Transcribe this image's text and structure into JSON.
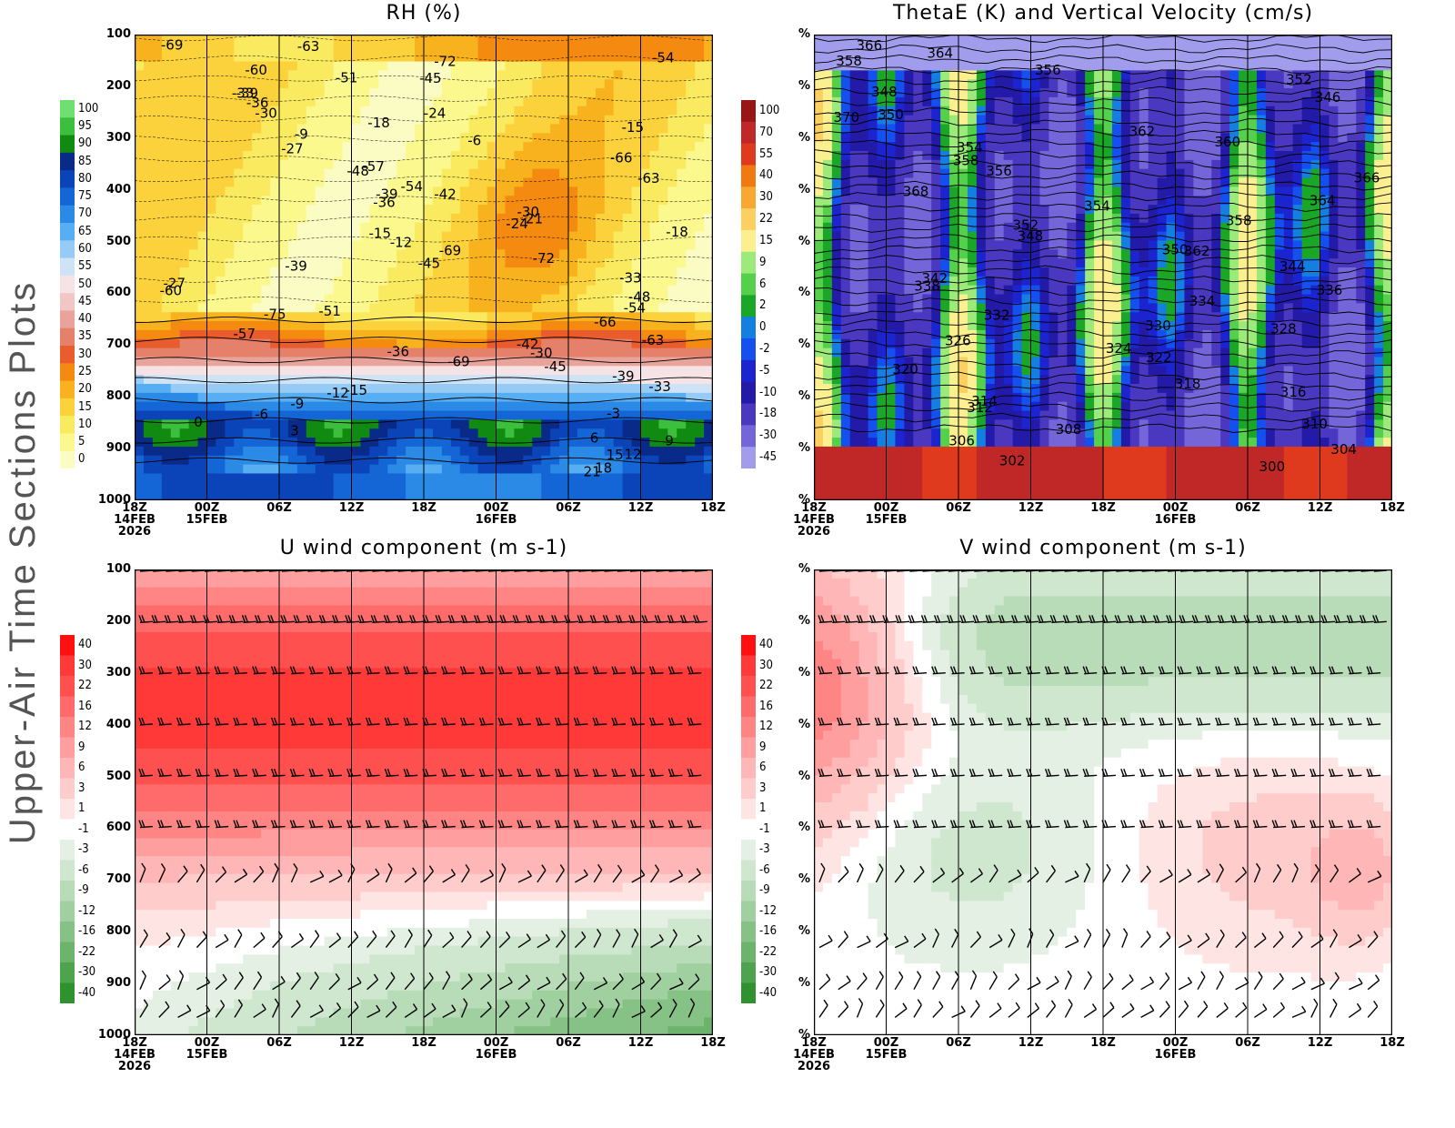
{
  "page_title": "Upper-Air Time Sections Plots",
  "chart_data": [
    {
      "id": "rh",
      "type": "heatmap",
      "title": "RH (%)",
      "y_ticks": [
        "100",
        "200",
        "300",
        "400",
        "500",
        "600",
        "700",
        "800",
        "900",
        "1000"
      ],
      "x_ticks": [
        "18Z",
        "00Z",
        "06Z",
        "12Z",
        "18Z",
        "00Z",
        "06Z",
        "12Z",
        "18Z"
      ],
      "x_date_labels": [
        {
          "index": 0,
          "lines": [
            "14FEB",
            "2026"
          ]
        },
        {
          "index": 1,
          "lines": [
            "15FEB"
          ]
        },
        {
          "index": 5,
          "lines": [
            "16FEB"
          ]
        }
      ],
      "colorbar": [
        "100",
        "95",
        "90",
        "85",
        "80",
        "75",
        "70",
        "65",
        "60",
        "55",
        "50",
        "45",
        "40",
        "35",
        "30",
        "25",
        "20",
        "15",
        "10",
        "5",
        "0"
      ],
      "colorbar_colors": [
        "#6fe06f",
        "#3cbf3c",
        "#108a10",
        "#0a2a8a",
        "#0b44b8",
        "#1466d6",
        "#2a8ae6",
        "#58aef2",
        "#96cbf5",
        "#cfe3f7",
        "#f6e3e6",
        "#f3c6c6",
        "#e8a39a",
        "#e5806a",
        "#e85c2e",
        "#f58a10",
        "#f7b21e",
        "#fbd23c",
        "#faea60",
        "#fbf88e",
        "#fbfbc4"
      ],
      "contour_labels": [
        "-69",
        "-63",
        "-54",
        "-72",
        "-60",
        "-51",
        "-45",
        "-39",
        "-33",
        "-36",
        "-30",
        "-24",
        "-18",
        "-15",
        "-9",
        "-6",
        "-27",
        "-66",
        "-57",
        "-48",
        "-63",
        "-54",
        "-42",
        "-39",
        "-36",
        "-30",
        "-21",
        "-24",
        "-18",
        "-15",
        "-12",
        "-69",
        "-72",
        "-45",
        "-39",
        "-33",
        "-27",
        "-60",
        "-48",
        "-54",
        "-51",
        "-75",
        "-66",
        "-57",
        "-63",
        "-42",
        "-36",
        "-30",
        "-69",
        "-45",
        "-39",
        "-33",
        "-15",
        "-12",
        "-9",
        "-6",
        "-3",
        "0",
        "3",
        "6",
        "9",
        "12",
        "15",
        "18",
        "21"
      ]
    },
    {
      "id": "thetae",
      "type": "heatmap",
      "title": "ThetaE (K) and Vertical Velocity (cm/s)",
      "y_ticks": [
        "%",
        "%",
        "%",
        "%",
        "%",
        "%",
        "%",
        "%",
        "%",
        "%"
      ],
      "x_ticks": [
        "18Z",
        "00Z",
        "06Z",
        "12Z",
        "18Z",
        "00Z",
        "06Z",
        "12Z",
        "18Z"
      ],
      "x_date_labels": [
        {
          "index": 0,
          "lines": [
            "14FEB",
            "2026"
          ]
        },
        {
          "index": 1,
          "lines": [
            "15FEB"
          ]
        },
        {
          "index": 5,
          "lines": [
            "16FEB"
          ]
        }
      ],
      "colorbar": [
        "100",
        "70",
        "55",
        "40",
        "30",
        "22",
        "15",
        "9",
        "6",
        "2",
        "0",
        "-2",
        "-5",
        "-10",
        "-18",
        "-30",
        "-45"
      ],
      "colorbar_colors": [
        "#9a1515",
        "#c02828",
        "#e03a1e",
        "#f07a10",
        "#f8a830",
        "#fbd060",
        "#fbef90",
        "#9bea7a",
        "#55d04a",
        "#1aa626",
        "#147fe0",
        "#1450f0",
        "#1c24d0",
        "#241aa8",
        "#4a38c0",
        "#7466d8",
        "#a19cec"
      ],
      "contour_labels": [
        "366",
        "364",
        "358",
        "356",
        "352",
        "348",
        "346",
        "350",
        "370",
        "362",
        "360",
        "354",
        "358",
        "356",
        "366",
        "368",
        "364",
        "354",
        "358",
        "352",
        "348",
        "350",
        "362",
        "344",
        "342",
        "338",
        "336",
        "334",
        "332",
        "330",
        "328",
        "326",
        "324",
        "322",
        "320",
        "318",
        "316",
        "314",
        "312",
        "310",
        "308",
        "306",
        "304",
        "302",
        "300"
      ]
    },
    {
      "id": "uwind",
      "type": "heatmap",
      "title": "U wind component (m s-1)",
      "y_ticks": [
        "100",
        "200",
        "300",
        "400",
        "500",
        "600",
        "700",
        "800",
        "900",
        "1000"
      ],
      "x_ticks": [
        "18Z",
        "00Z",
        "06Z",
        "12Z",
        "18Z",
        "00Z",
        "06Z",
        "12Z",
        "18Z"
      ],
      "x_date_labels": [
        {
          "index": 0,
          "lines": [
            "14FEB",
            "2026"
          ]
        },
        {
          "index": 1,
          "lines": [
            "15FEB"
          ]
        },
        {
          "index": 5,
          "lines": [
            "16FEB"
          ]
        }
      ],
      "colorbar": [
        "40",
        "30",
        "22",
        "16",
        "12",
        "9",
        "6",
        "3",
        "1",
        "-1",
        "-3",
        "-6",
        "-9",
        "-12",
        "-16",
        "-22",
        "-30",
        "-40"
      ],
      "colorbar_colors": [
        "#ff1010",
        "#ff3838",
        "#ff5050",
        "#ff6a6a",
        "#ff8484",
        "#ff9e9e",
        "#ffb6b6",
        "#ffcccc",
        "#ffe4e4",
        "#ffffff",
        "#e4f0e4",
        "#cfe6cf",
        "#b8dcb8",
        "#a0d0a0",
        "#86c286",
        "#6cb46c",
        "#4ea44e",
        "#2e922e"
      ],
      "contour_labels": []
    },
    {
      "id": "vwind",
      "type": "heatmap",
      "title": "V wind component (m s-1)",
      "y_ticks": [
        "%",
        "%",
        "%",
        "%",
        "%",
        "%",
        "%",
        "%",
        "%",
        "%"
      ],
      "x_ticks": [
        "18Z",
        "00Z",
        "06Z",
        "12Z",
        "18Z",
        "00Z",
        "06Z",
        "12Z",
        "18Z"
      ],
      "x_date_labels": [
        {
          "index": 0,
          "lines": [
            "14FEB",
            "2026"
          ]
        },
        {
          "index": 1,
          "lines": [
            "15FEB"
          ]
        },
        {
          "index": 5,
          "lines": [
            "16FEB"
          ]
        }
      ],
      "colorbar": [
        "40",
        "30",
        "22",
        "16",
        "12",
        "9",
        "6",
        "3",
        "1",
        "-1",
        "-3",
        "-6",
        "-9",
        "-12",
        "-16",
        "-22",
        "-30",
        "-40"
      ],
      "colorbar_colors": [
        "#ff1010",
        "#ff3838",
        "#ff5050",
        "#ff6a6a",
        "#ff8484",
        "#ff9e9e",
        "#ffb6b6",
        "#ffcccc",
        "#ffe4e4",
        "#ffffff",
        "#e4f0e4",
        "#cfe6cf",
        "#b8dcb8",
        "#a0d0a0",
        "#86c286",
        "#6cb46c",
        "#4ea44e",
        "#2e922e"
      ],
      "contour_labels": []
    }
  ]
}
